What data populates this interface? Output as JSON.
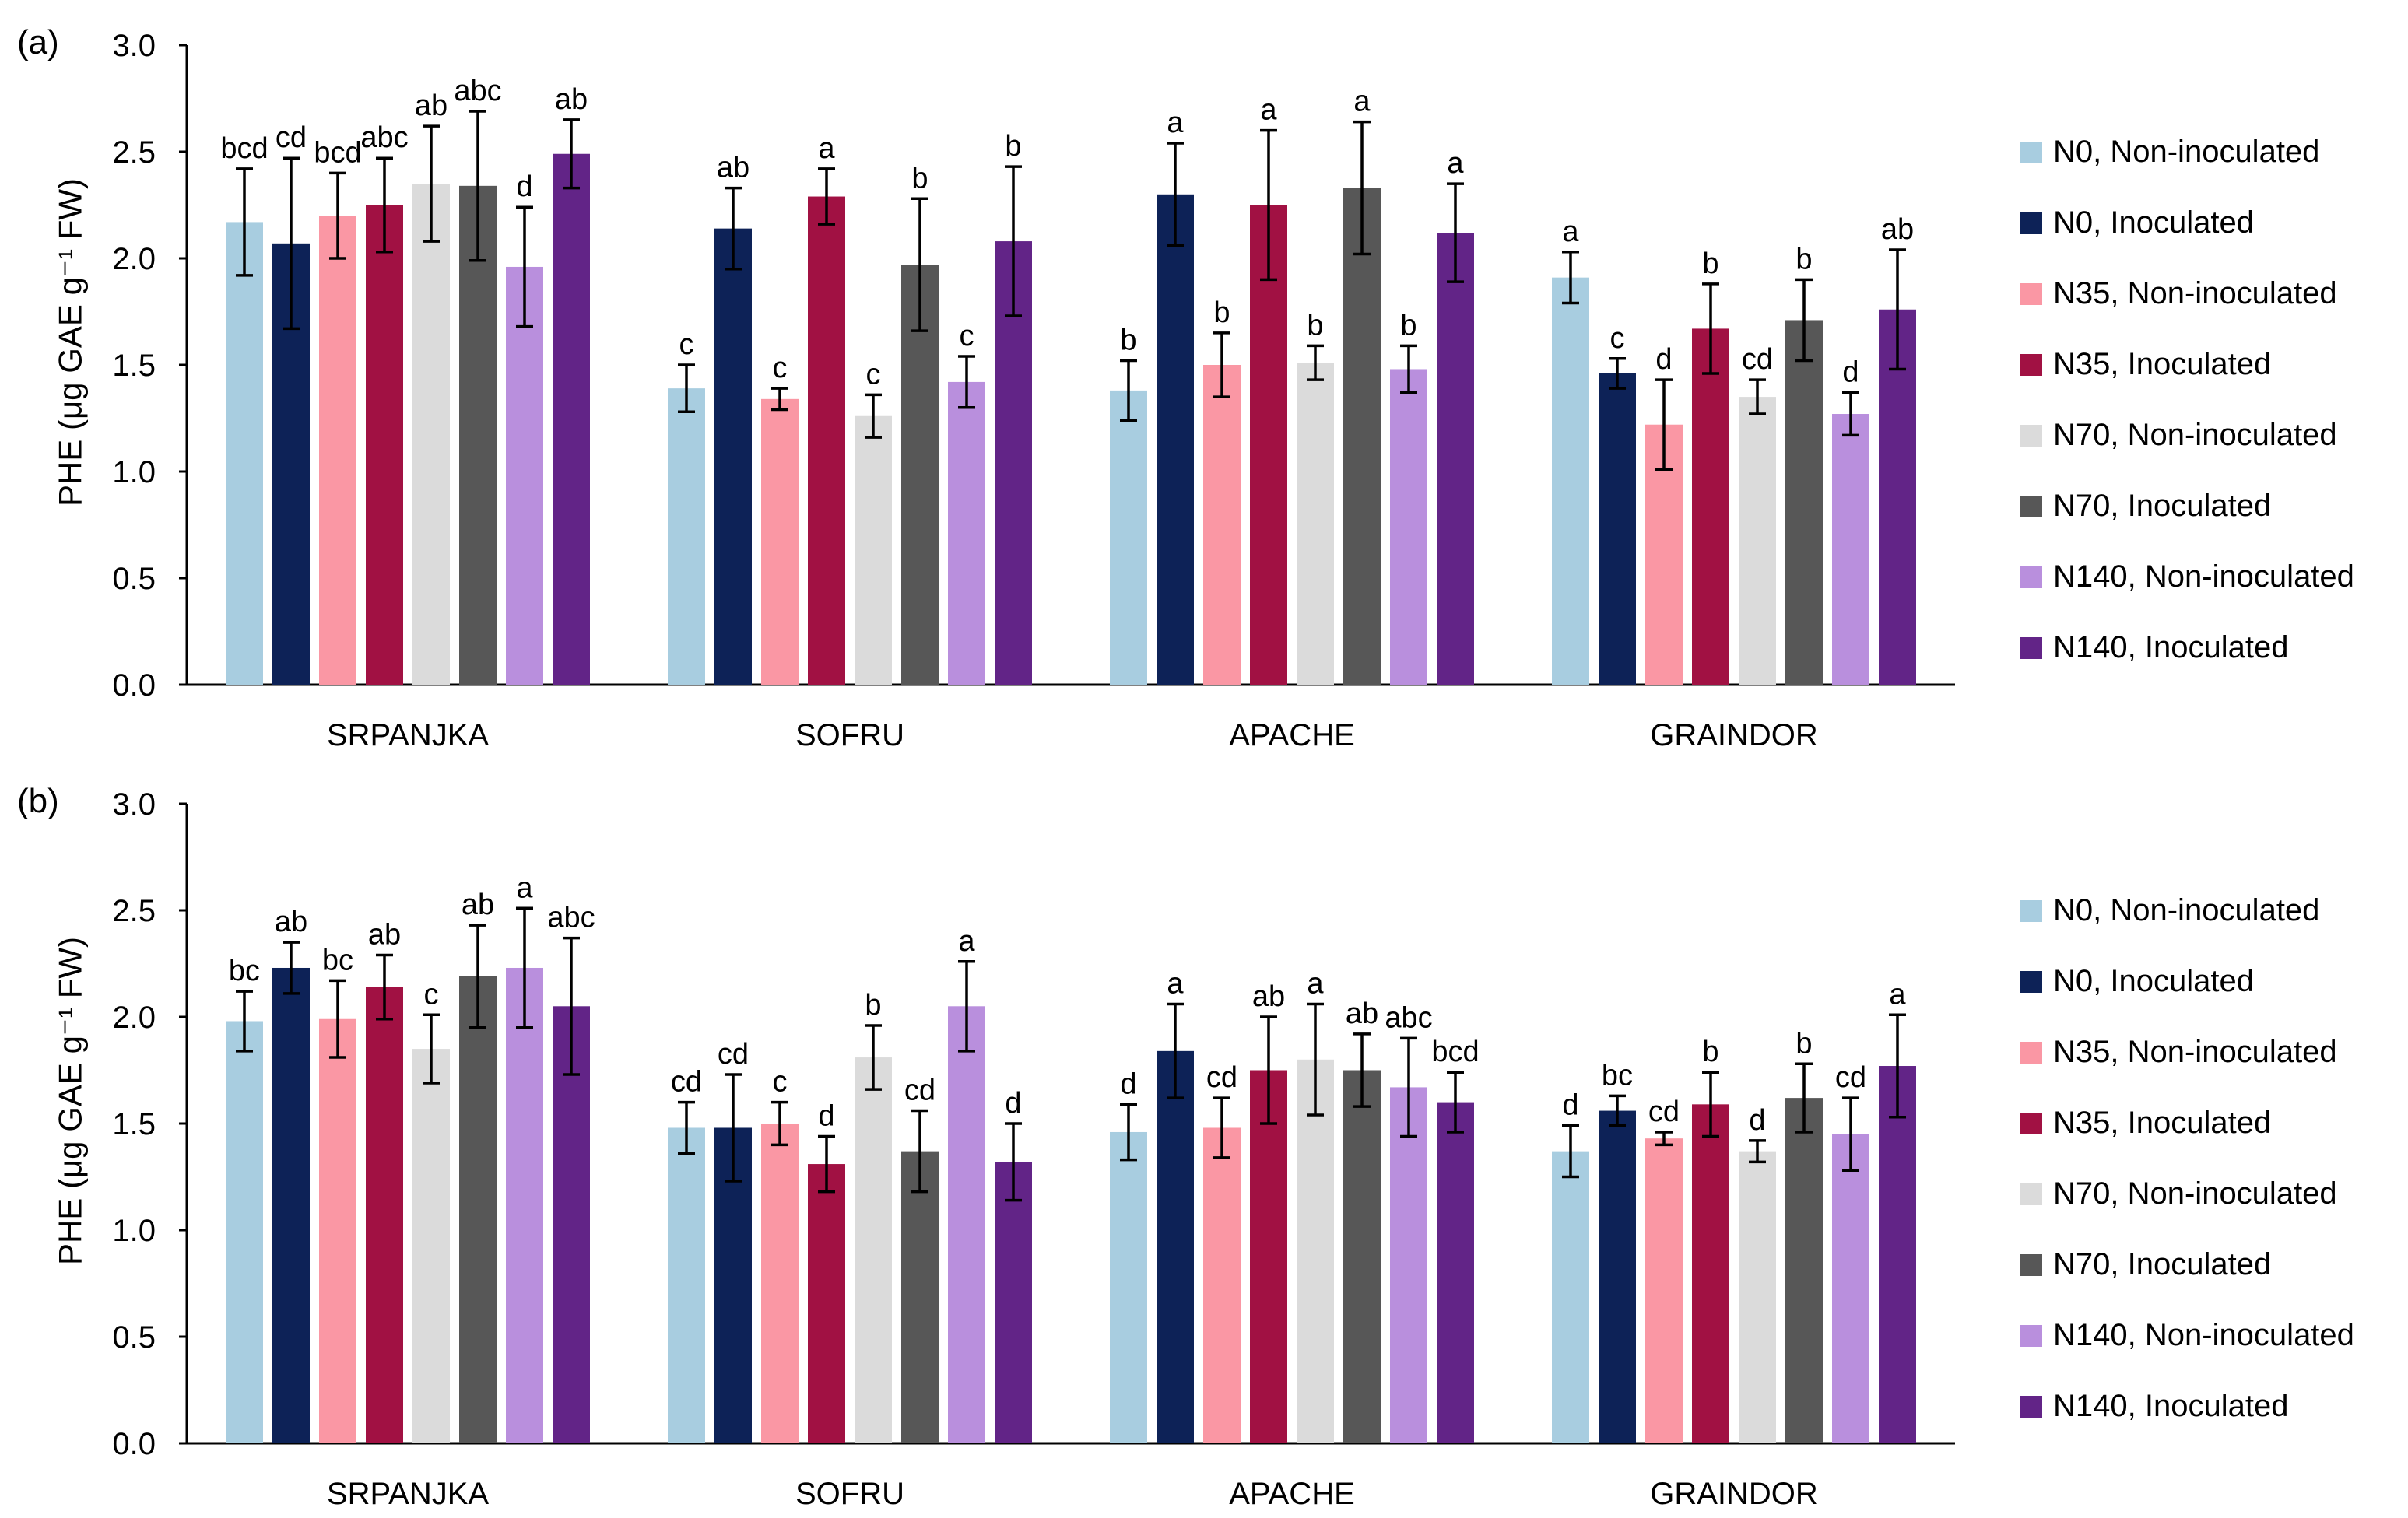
{
  "ylabel": "PHE (μg GAE g⁻¹ FW)",
  "chart_data": [
    {
      "type": "bar",
      "panel_label": "(a)",
      "ylabel": "PHE (μg GAE g⁻¹ FW)",
      "ylim": [
        0,
        3.0
      ],
      "yticks": [
        "0.0",
        "0.5",
        "1.0",
        "1.5",
        "2.0",
        "2.5",
        "3.0"
      ],
      "categories": [
        "SRPANJKA",
        "SOFRU",
        "APACHE",
        "GRAINDOR"
      ],
      "series": [
        {
          "name": "N0, Non-inoculated",
          "color": "#a8cde0",
          "values": [
            2.17,
            1.39,
            1.38,
            1.91
          ],
          "errors": [
            0.25,
            0.11,
            0.14,
            0.12
          ],
          "labels": [
            "bcd",
            "c",
            "b",
            "a"
          ]
        },
        {
          "name": "N0, Inoculated",
          "color": "#0d2257",
          "values": [
            2.07,
            2.14,
            2.3,
            1.46
          ],
          "errors": [
            0.4,
            0.19,
            0.24,
            0.07
          ],
          "labels": [
            "cd",
            "ab",
            "a",
            "c"
          ]
        },
        {
          "name": "N35, Non-inoculated",
          "color": "#fa97a4",
          "values": [
            2.2,
            1.34,
            1.5,
            1.22
          ],
          "errors": [
            0.2,
            0.05,
            0.15,
            0.21
          ],
          "labels": [
            "bcd",
            "c",
            "b",
            "d"
          ]
        },
        {
          "name": "N35, Inoculated",
          "color": "#a11143",
          "values": [
            2.25,
            2.29,
            2.25,
            1.67
          ],
          "errors": [
            0.22,
            0.13,
            0.35,
            0.21
          ],
          "labels": [
            "abc",
            "a",
            "a",
            "b"
          ]
        },
        {
          "name": "N70, Non-inoculated",
          "color": "#dbdbdb",
          "values": [
            2.35,
            1.26,
            1.51,
            1.35
          ],
          "errors": [
            0.27,
            0.1,
            0.08,
            0.08
          ],
          "labels": [
            "ab",
            "c",
            "b",
            "cd"
          ]
        },
        {
          "name": "N70, Inoculated",
          "color": "#575757",
          "values": [
            2.34,
            1.97,
            2.33,
            1.71
          ],
          "errors": [
            0.35,
            0.31,
            0.31,
            0.19
          ],
          "labels": [
            "abc",
            "b",
            "a",
            "b"
          ]
        },
        {
          "name": "N140, Non-inoculated",
          "color": "#b98fdd",
          "values": [
            1.96,
            1.42,
            1.48,
            1.27
          ],
          "errors": [
            0.28,
            0.12,
            0.11,
            0.1
          ],
          "labels": [
            "d",
            "c",
            "b",
            "d"
          ]
        },
        {
          "name": "N140, Inoculated",
          "color": "#622487",
          "values": [
            2.49,
            2.08,
            2.12,
            1.76
          ],
          "errors": [
            0.16,
            0.35,
            0.23,
            0.28
          ],
          "labels": [
            "ab",
            "b",
            "a",
            "ab"
          ]
        }
      ]
    },
    {
      "type": "bar",
      "panel_label": "(b)",
      "ylabel": "PHE (μg GAE g⁻¹ FW)",
      "ylim": [
        0,
        3.0
      ],
      "yticks": [
        "0.0",
        "0.5",
        "1.0",
        "1.5",
        "2.0",
        "2.5",
        "3.0"
      ],
      "categories": [
        "SRPANJKA",
        "SOFRU",
        "APACHE",
        "GRAINDOR"
      ],
      "series": [
        {
          "name": "N0, Non-inoculated",
          "color": "#a8cde0",
          "values": [
            1.98,
            1.48,
            1.46,
            1.37
          ],
          "errors": [
            0.14,
            0.12,
            0.13,
            0.12
          ],
          "labels": [
            "bc",
            "cd",
            "d",
            "d"
          ]
        },
        {
          "name": "N0, Inoculated",
          "color": "#0d2257",
          "values": [
            2.23,
            1.48,
            1.84,
            1.56
          ],
          "errors": [
            0.12,
            0.25,
            0.22,
            0.07
          ],
          "labels": [
            "ab",
            "cd",
            "a",
            "bc"
          ]
        },
        {
          "name": "N35, Non-inoculated",
          "color": "#fa97a4",
          "values": [
            1.99,
            1.5,
            1.48,
            1.43
          ],
          "errors": [
            0.18,
            0.1,
            0.14,
            0.03
          ],
          "labels": [
            "bc",
            "c",
            "cd",
            "cd"
          ]
        },
        {
          "name": "N35, Inoculated",
          "color": "#a11143",
          "values": [
            2.14,
            1.31,
            1.75,
            1.59
          ],
          "errors": [
            0.15,
            0.13,
            0.25,
            0.15
          ],
          "labels": [
            "ab",
            "d",
            "ab",
            "b"
          ]
        },
        {
          "name": "N70, Non-inoculated",
          "color": "#dbdbdb",
          "values": [
            1.85,
            1.81,
            1.8,
            1.37
          ],
          "errors": [
            0.16,
            0.15,
            0.26,
            0.05
          ],
          "labels": [
            "c",
            "b",
            "a",
            "d"
          ]
        },
        {
          "name": "N70, Inoculated",
          "color": "#575757",
          "values": [
            2.19,
            1.37,
            1.75,
            1.62
          ],
          "errors": [
            0.24,
            0.19,
            0.17,
            0.16
          ],
          "labels": [
            "ab",
            "cd",
            "ab",
            "b"
          ]
        },
        {
          "name": "N140, Non-inoculated",
          "color": "#b98fdd",
          "values": [
            2.23,
            2.05,
            1.67,
            1.45
          ],
          "errors": [
            0.28,
            0.21,
            0.23,
            0.17
          ],
          "labels": [
            "a",
            "a",
            "abc",
            "cd"
          ]
        },
        {
          "name": "N140, Inoculated",
          "color": "#622487",
          "values": [
            2.05,
            1.32,
            1.6,
            1.77
          ],
          "errors": [
            0.32,
            0.18,
            0.14,
            0.24
          ],
          "labels": [
            "abc",
            "d",
            "bcd",
            "a"
          ]
        }
      ]
    }
  ]
}
